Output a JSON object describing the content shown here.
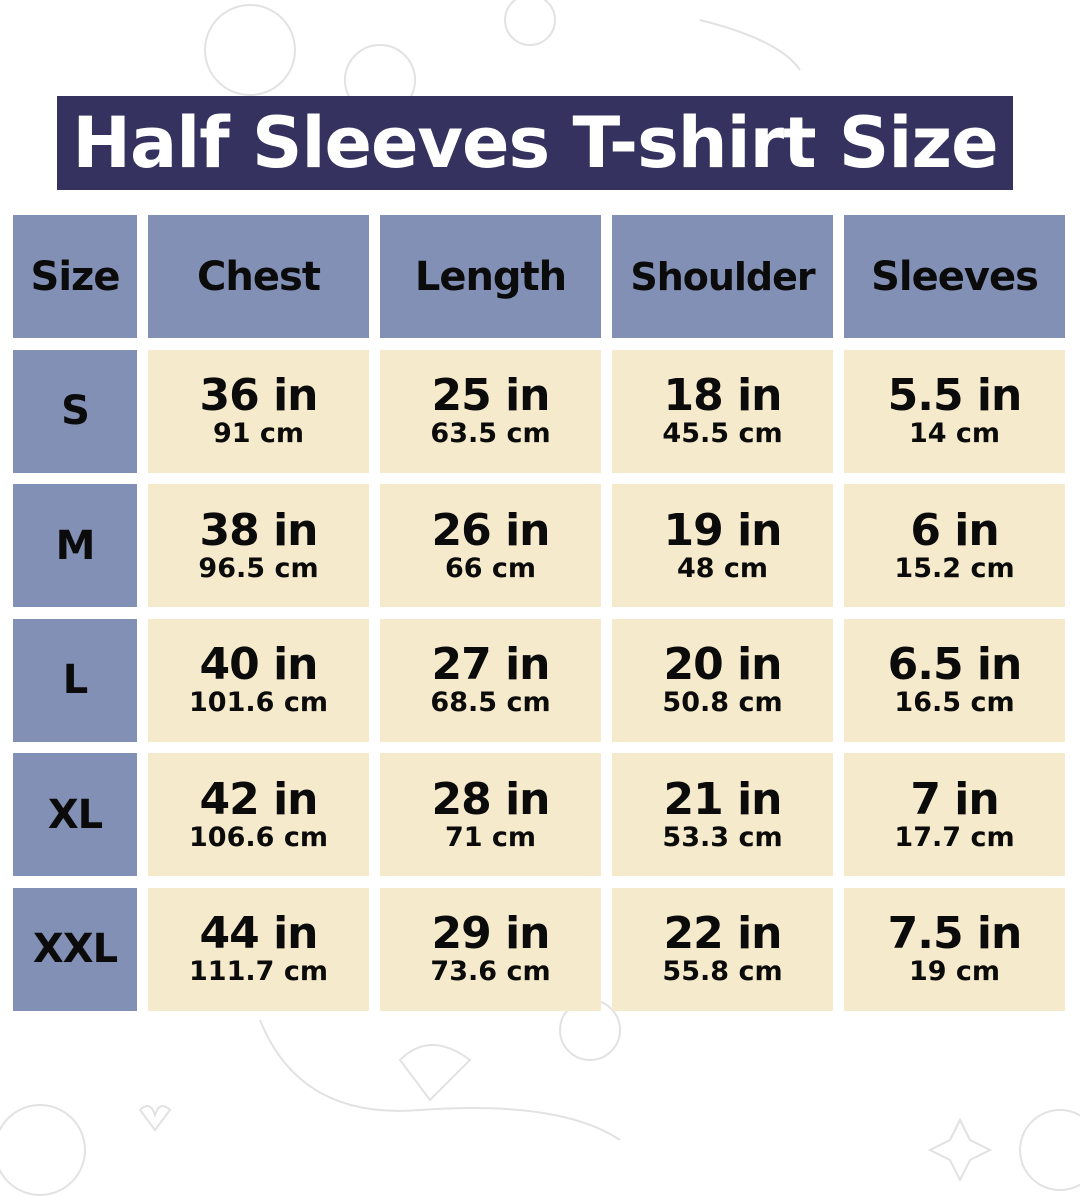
{
  "title": "Half Sleeves T-shirt Size",
  "colors": {
    "title_bg": "#35325f",
    "header_bg": "#8290b5",
    "cell_bg": "#f5eacb"
  },
  "headers": [
    "Size",
    "Chest",
    "Length",
    "Shoulder",
    "Sleeves"
  ],
  "rows": [
    {
      "size": "S",
      "cells": [
        {
          "in": "36 in",
          "cm": "91 cm"
        },
        {
          "in": "25 in",
          "cm": "63.5 cm"
        },
        {
          "in": "18 in",
          "cm": "45.5 cm"
        },
        {
          "in": "5.5 in",
          "cm": "14 cm"
        }
      ]
    },
    {
      "size": "M",
      "cells": [
        {
          "in": "38 in",
          "cm": "96.5 cm"
        },
        {
          "in": "26 in",
          "cm": "66 cm"
        },
        {
          "in": "19 in",
          "cm": "48 cm"
        },
        {
          "in": "6 in",
          "cm": "15.2 cm"
        }
      ]
    },
    {
      "size": "L",
      "cells": [
        {
          "in": "40 in",
          "cm": "101.6 cm"
        },
        {
          "in": "27 in",
          "cm": "68.5 cm"
        },
        {
          "in": "20 in",
          "cm": "50.8 cm"
        },
        {
          "in": "6.5 in",
          "cm": "16.5 cm"
        }
      ]
    },
    {
      "size": "XL",
      "cells": [
        {
          "in": "42 in",
          "cm": "106.6 cm"
        },
        {
          "in": "28 in",
          "cm": "71 cm"
        },
        {
          "in": "21 in",
          "cm": "53.3 cm"
        },
        {
          "in": "7 in",
          "cm": "17.7 cm"
        }
      ]
    },
    {
      "size": "XXL",
      "cells": [
        {
          "in": "44 in",
          "cm": "111.7 cm"
        },
        {
          "in": "29 in",
          "cm": "73.6 cm"
        },
        {
          "in": "22 in",
          "cm": "55.8 cm"
        },
        {
          "in": "7.5 in",
          "cm": "19 cm"
        }
      ]
    }
  ]
}
